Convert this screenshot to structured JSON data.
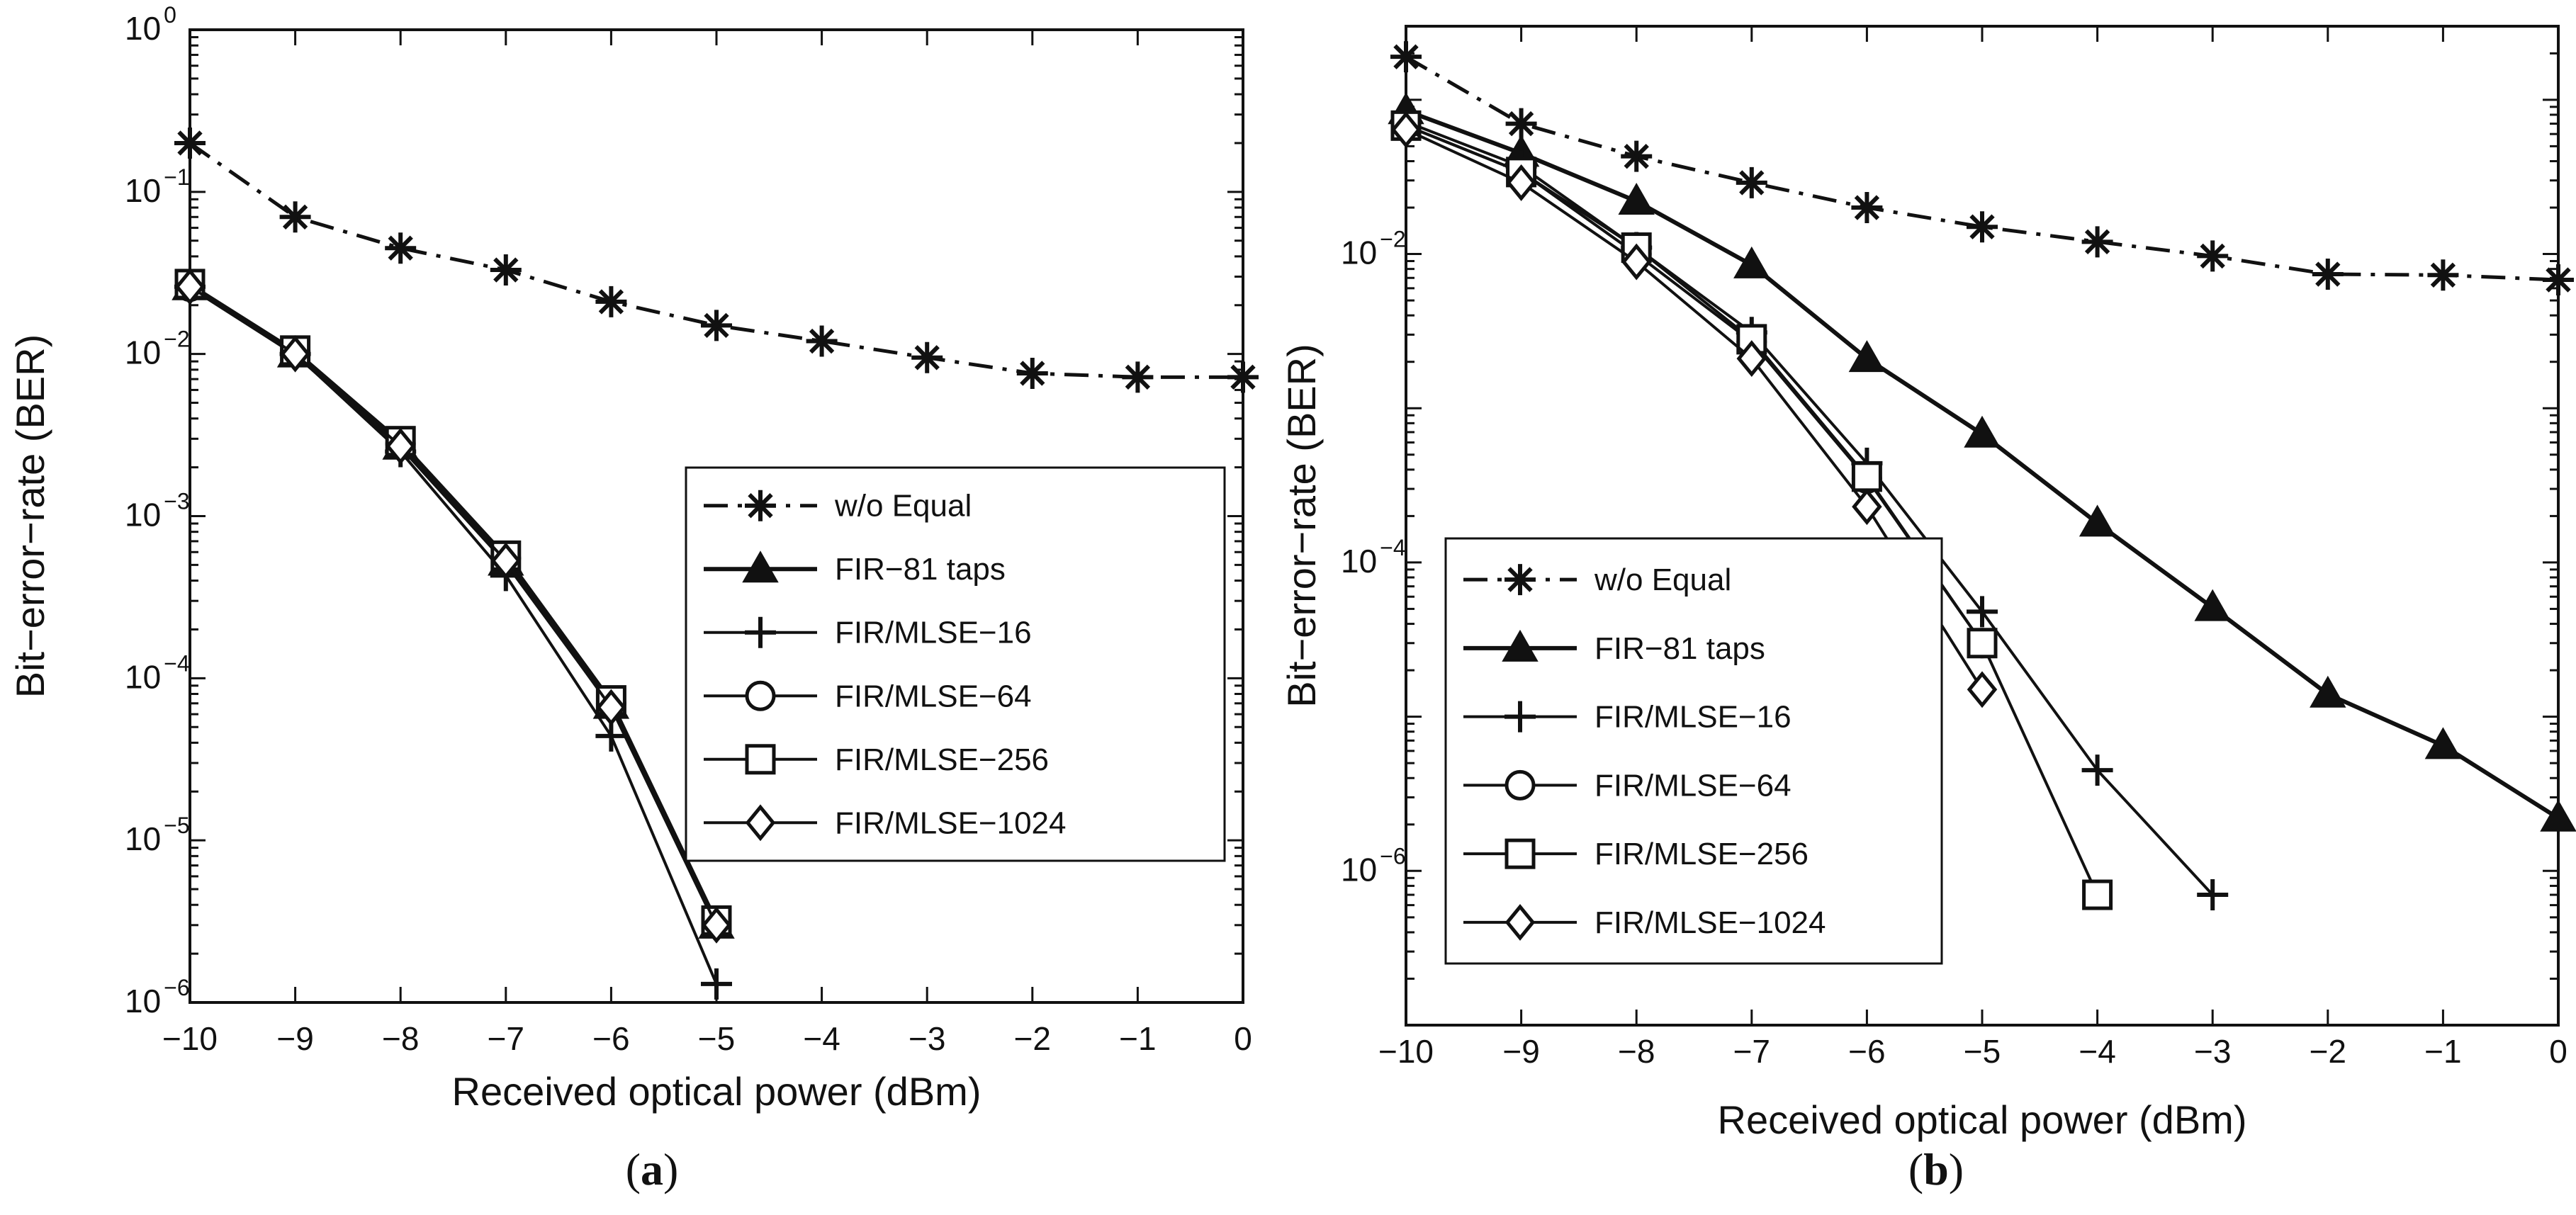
{
  "figure": {
    "panels": [
      "(a)",
      "(b)"
    ]
  },
  "chart_data": [
    {
      "panel": "(a)",
      "type": "line",
      "xlabel": "Received optical power (dBm)",
      "ylabel": "Bit−error−rate (BER)",
      "xlim": [
        -10,
        0
      ],
      "ylim": [
        1e-06,
        1
      ],
      "yscale": "log",
      "grid": false,
      "legend_position": "center-right",
      "x_ticks": [
        -10,
        -9,
        -8,
        -7,
        -6,
        -5,
        -4,
        -3,
        -2,
        -1,
        0
      ],
      "x_tick_labels": [
        "−10",
        "−9",
        "−8",
        "−7",
        "−6",
        "−5",
        "−4",
        "−3",
        "−2",
        "−1",
        "0"
      ],
      "y_tick_exponents": [
        0,
        -1,
        -2,
        -3,
        -4,
        -5,
        -6
      ],
      "y_tick_base": "10",
      "y_tick_exp_labels": [
        "0",
        "−1",
        "−2",
        "−3",
        "−4",
        "−5",
        "−6"
      ],
      "series": [
        {
          "name": "w/o Equal",
          "marker": "star",
          "line": "dashdot",
          "x": [
            -10,
            -9,
            -8,
            -7,
            -6,
            -5,
            -4,
            -3,
            -2,
            -1,
            0
          ],
          "y": [
            0.2,
            0.07,
            0.045,
            0.033,
            0.021,
            0.015,
            0.012,
            0.0095,
            0.0076,
            0.0072,
            0.0072
          ]
        },
        {
          "name": "FIR−81 taps",
          "marker": "triangle",
          "line": "solid-bold",
          "x": [
            -10,
            -9,
            -8,
            -7,
            -6,
            -5
          ],
          "y": [
            0.026,
            0.01,
            0.0027,
            0.00052,
            6.8e-05,
            3e-06
          ]
        },
        {
          "name": "FIR/MLSE−16",
          "marker": "plus",
          "line": "solid",
          "x": [
            -10,
            -9,
            -8,
            -7,
            -6,
            -5
          ],
          "y": [
            0.026,
            0.01,
            0.0025,
            0.00043,
            4.4e-05,
            1.3e-06
          ]
        },
        {
          "name": "FIR/MLSE−64",
          "marker": "circle",
          "line": "solid",
          "x": [
            -10,
            -9,
            -8,
            -7,
            -6,
            -5
          ],
          "y": [
            0.026,
            0.0105,
            0.0028,
            0.00055,
            7e-05,
            3.1e-06
          ]
        },
        {
          "name": "FIR/MLSE−256",
          "marker": "square",
          "line": "solid",
          "x": [
            -10,
            -9,
            -8,
            -7,
            -6,
            -5
          ],
          "y": [
            0.027,
            0.0105,
            0.0029,
            0.00057,
            7.3e-05,
            3.2e-06
          ]
        },
        {
          "name": "FIR/MLSE−1024",
          "marker": "diamond",
          "line": "solid",
          "x": [
            -10,
            -9,
            -8,
            -7,
            -6,
            -5
          ],
          "y": [
            0.026,
            0.01,
            0.0027,
            0.00053,
            6.6e-05,
            3e-06
          ]
        }
      ]
    },
    {
      "panel": "(b)",
      "type": "line",
      "xlabel": "Received optical power (dBm)",
      "ylabel": "Bit−error−rate (BER)",
      "xlim": [
        -10,
        0
      ],
      "ylim": [
        1e-07,
        0.3
      ],
      "yscale": "log",
      "grid": false,
      "legend_position": "lower-left",
      "x_ticks": [
        -10,
        -9,
        -8,
        -7,
        -6,
        -5,
        -4,
        -3,
        -2,
        -1,
        0
      ],
      "x_tick_labels": [
        "−10",
        "−9",
        "−8",
        "−7",
        "−6",
        "−5",
        "−4",
        "−3",
        "−2",
        "−1",
        "0"
      ],
      "y_tick_exponents": [
        -2,
        -4,
        -6
      ],
      "y_tick_base": "10",
      "y_tick_exp_labels": [
        "−2",
        "−4",
        "−6"
      ],
      "series": [
        {
          "name": "w/o Equal",
          "marker": "star",
          "line": "dashdot",
          "x": [
            -10,
            -9,
            -8,
            -7,
            -6,
            -5,
            -4,
            -3,
            -2,
            -1,
            0
          ],
          "y": [
            0.19,
            0.07,
            0.043,
            0.029,
            0.02,
            0.015,
            0.012,
            0.0097,
            0.0074,
            0.0073,
            0.0068
          ]
        },
        {
          "name": "FIR−81 taps",
          "marker": "triangle",
          "line": "solid-bold",
          "x": [
            -10,
            -9,
            -8,
            -7,
            -6,
            -5,
            -4,
            -3,
            -2,
            -1,
            0
          ],
          "y": [
            0.085,
            0.045,
            0.022,
            0.0085,
            0.0021,
            0.00068,
            0.00018,
            5.1e-05,
            1.4e-05,
            6.5e-06,
            2.2e-06
          ]
        },
        {
          "name": "FIR/MLSE−16",
          "marker": "plus",
          "line": "solid",
          "x": [
            -10,
            -9,
            -8,
            -7,
            -6,
            -5,
            -4,
            -3
          ],
          "y": [
            0.072,
            0.037,
            0.011,
            0.0031,
            0.00044,
            4.8e-05,
            4.5e-06,
            7e-07
          ]
        },
        {
          "name": "FIR/MLSE−64",
          "marker": "circle",
          "line": "solid",
          "x": [
            -10,
            -9,
            -8,
            -7,
            -6,
            -5
          ],
          "y": [
            0.068,
            0.034,
            0.01,
            0.0027,
            0.00035,
            3e-05
          ]
        },
        {
          "name": "FIR/MLSE−256",
          "marker": "square",
          "line": "solid",
          "x": [
            -10,
            -9,
            -8,
            -7,
            -6,
            -5,
            -4
          ],
          "y": [
            0.068,
            0.034,
            0.011,
            0.0028,
            0.00036,
            3e-05,
            7e-07
          ]
        },
        {
          "name": "FIR/MLSE−1024",
          "marker": "diamond",
          "line": "solid",
          "x": [
            -10,
            -9,
            -8,
            -7,
            -6,
            -5
          ],
          "y": [
            0.064,
            0.029,
            0.0089,
            0.0021,
            0.00023,
            1.5e-05
          ]
        }
      ]
    }
  ]
}
